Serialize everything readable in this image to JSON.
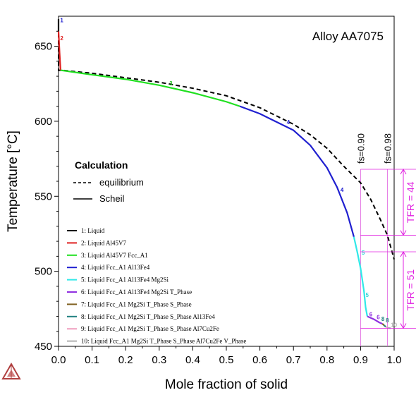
{
  "chart_data": {
    "type": "line",
    "title": "Alloy AA7075",
    "xlabel": "Mole fraction of solid",
    "ylabel": "Temperature [°C]",
    "xlim": [
      0.0,
      1.0
    ],
    "ylim": [
      450,
      670
    ],
    "x_ticks": [
      "0.0",
      "0.1",
      "0.2",
      "0.3",
      "0.4",
      "0.5",
      "0.6",
      "0.7",
      "0.8",
      "0.9",
      "1.0"
    ],
    "y_ticks": [
      "450",
      "500",
      "550",
      "600",
      "650"
    ],
    "grid": false,
    "legend_position": "bottom-left",
    "calculation_legend": {
      "title": "Calculation",
      "items": [
        {
          "label": "equilibrium",
          "style": "dashed"
        },
        {
          "label": "Scheil",
          "style": "solid"
        }
      ]
    },
    "phase_legend": [
      {
        "label": "1: Liquid",
        "color": "#000000"
      },
      {
        "label": "2: Liquid Al45V7",
        "color": "#e02020"
      },
      {
        "label": "3: Liquid Al45V7 Fcc_A1",
        "color": "#20e020"
      },
      {
        "label": "4: Liquid Fcc_A1 Al13Fe4",
        "color": "#2020d0"
      },
      {
        "label": "5: Liquid Fcc_A1 Al13Fe4 Mg2Si",
        "color": "#30e8e8"
      },
      {
        "label": "6: Liquid Fcc_A1 Al13Fe4 Mg2Si T_Phase",
        "color": "#9030e0"
      },
      {
        "label": "7: Liquid Fcc_A1 Mg2Si T_Phase S_Phase",
        "color": "#806020"
      },
      {
        "label": "8: Liquid Fcc_A1 Mg2Si T_Phase S_Phase Al13Fe4",
        "color": "#208080"
      },
      {
        "label": "9: Liquid Fcc_A1 Mg2Si T_Phase S_Phase Al7Cu2Fe",
        "color": "#f0a0c0"
      },
      {
        "label": "10: Liquid Fcc_A1 Mg2Si T_Phase S_Phase Al7Cu2Fe V_Phase",
        "color": "#b0b0b0"
      }
    ],
    "series": [
      {
        "name": "equilibrium",
        "style": "dashed",
        "color": "#000000",
        "x": [
          0.0,
          0.0,
          0.01,
          0.1,
          0.2,
          0.3,
          0.4,
          0.5,
          0.6,
          0.7,
          0.75,
          0.8,
          0.85,
          0.9,
          0.93,
          0.96,
          0.98,
          1.0
        ],
        "y": [
          668,
          634,
          634,
          632,
          629,
          626,
          622,
          617,
          609,
          598,
          591,
          582,
          570,
          559,
          548,
          534,
          524,
          508
        ]
      },
      {
        "name": "Scheil",
        "style": "solid",
        "segments": [
          {
            "phase": "1",
            "color": "#000000",
            "x": [
              0.0,
              0.0
            ],
            "y": [
              668,
              660
            ]
          },
          {
            "phase": "2",
            "color": "#e02020",
            "x": [
              0.0,
              0.003,
              0.006
            ],
            "y": [
              660,
              646,
              634
            ]
          },
          {
            "phase": "3",
            "color": "#20e020",
            "x": [
              0.006,
              0.1,
              0.2,
              0.3,
              0.4,
              0.5,
              0.54
            ],
            "y": [
              634,
              631,
              628,
              624,
              619,
              613,
              610
            ]
          },
          {
            "phase": "4",
            "color": "#2020d0",
            "x": [
              0.54,
              0.6,
              0.7,
              0.75,
              0.8,
              0.83,
              0.86,
              0.88
            ],
            "y": [
              610,
              605,
              594,
              584,
              569,
              556,
              539,
              523
            ]
          },
          {
            "phase": "5",
            "color": "#30e8e8",
            "x": [
              0.88,
              0.89,
              0.9,
              0.91,
              0.915,
              0.92
            ],
            "y": [
              523,
              513,
              502,
              487,
              476,
              470
            ]
          },
          {
            "phase": "6",
            "color": "#9030e0",
            "x": [
              0.92,
              0.94,
              0.955,
              0.965
            ],
            "y": [
              470,
              468,
              466,
              465
            ]
          },
          {
            "phase": "7",
            "color": "#806020",
            "x": [
              0.965,
              0.97
            ],
            "y": [
              465,
              464
            ]
          },
          {
            "phase": "8",
            "color": "#208080",
            "x": [
              0.97,
              0.975
            ],
            "y": [
              464,
              463
            ]
          },
          {
            "phase": "9",
            "color": "#f0a0c0",
            "x": [
              0.975,
              0.98
            ],
            "y": [
              463,
              462.5
            ]
          },
          {
            "phase": "10",
            "color": "#b0b0b0",
            "x": [
              0.98,
              0.99
            ],
            "y": [
              462.5,
              462
            ]
          }
        ]
      }
    ],
    "segment_labels": [
      {
        "text": "1",
        "x": 0.005,
        "y": 666,
        "color": "#2020d0"
      },
      {
        "text": "2",
        "x": 0.005,
        "y": 654,
        "color": "#e02020"
      },
      {
        "text": "3",
        "x": 0.33,
        "y": 624,
        "color": "#20c020"
      },
      {
        "text": "4",
        "x": 0.68,
        "y": 598,
        "color": "#2020d0"
      },
      {
        "text": "4",
        "x": 0.84,
        "y": 553,
        "color": "#2020d0"
      },
      {
        "text": "5",
        "x": 0.903,
        "y": 511,
        "color": "#30d8d8"
      },
      {
        "text": "5",
        "x": 0.915,
        "y": 483,
        "color": "#30d8d8"
      },
      {
        "text": "6",
        "x": 0.926,
        "y": 470,
        "color": "#9030e0"
      },
      {
        "text": "6",
        "x": 0.948,
        "y": 468,
        "color": "#9030e0"
      },
      {
        "text": "8",
        "x": 0.962,
        "y": 467,
        "color": "#208080"
      },
      {
        "text": "8",
        "x": 0.975,
        "y": 466,
        "color": "#208080"
      },
      {
        "text": "10",
        "x": 0.99,
        "y": 463,
        "color": "#b0b0b0"
      }
    ],
    "annotations": [
      {
        "text": "fs=0.90",
        "x": 0.9
      },
      {
        "text": "fs=0.98",
        "x": 0.98
      }
    ],
    "tfr_brackets": [
      {
        "label": "TFR = 44",
        "y_top": 568,
        "y_bottom": 524,
        "color": "#e020e0"
      },
      {
        "label": "TFR = 51",
        "y_top": 513,
        "y_bottom": 462,
        "color": "#e020e0"
      }
    ]
  }
}
